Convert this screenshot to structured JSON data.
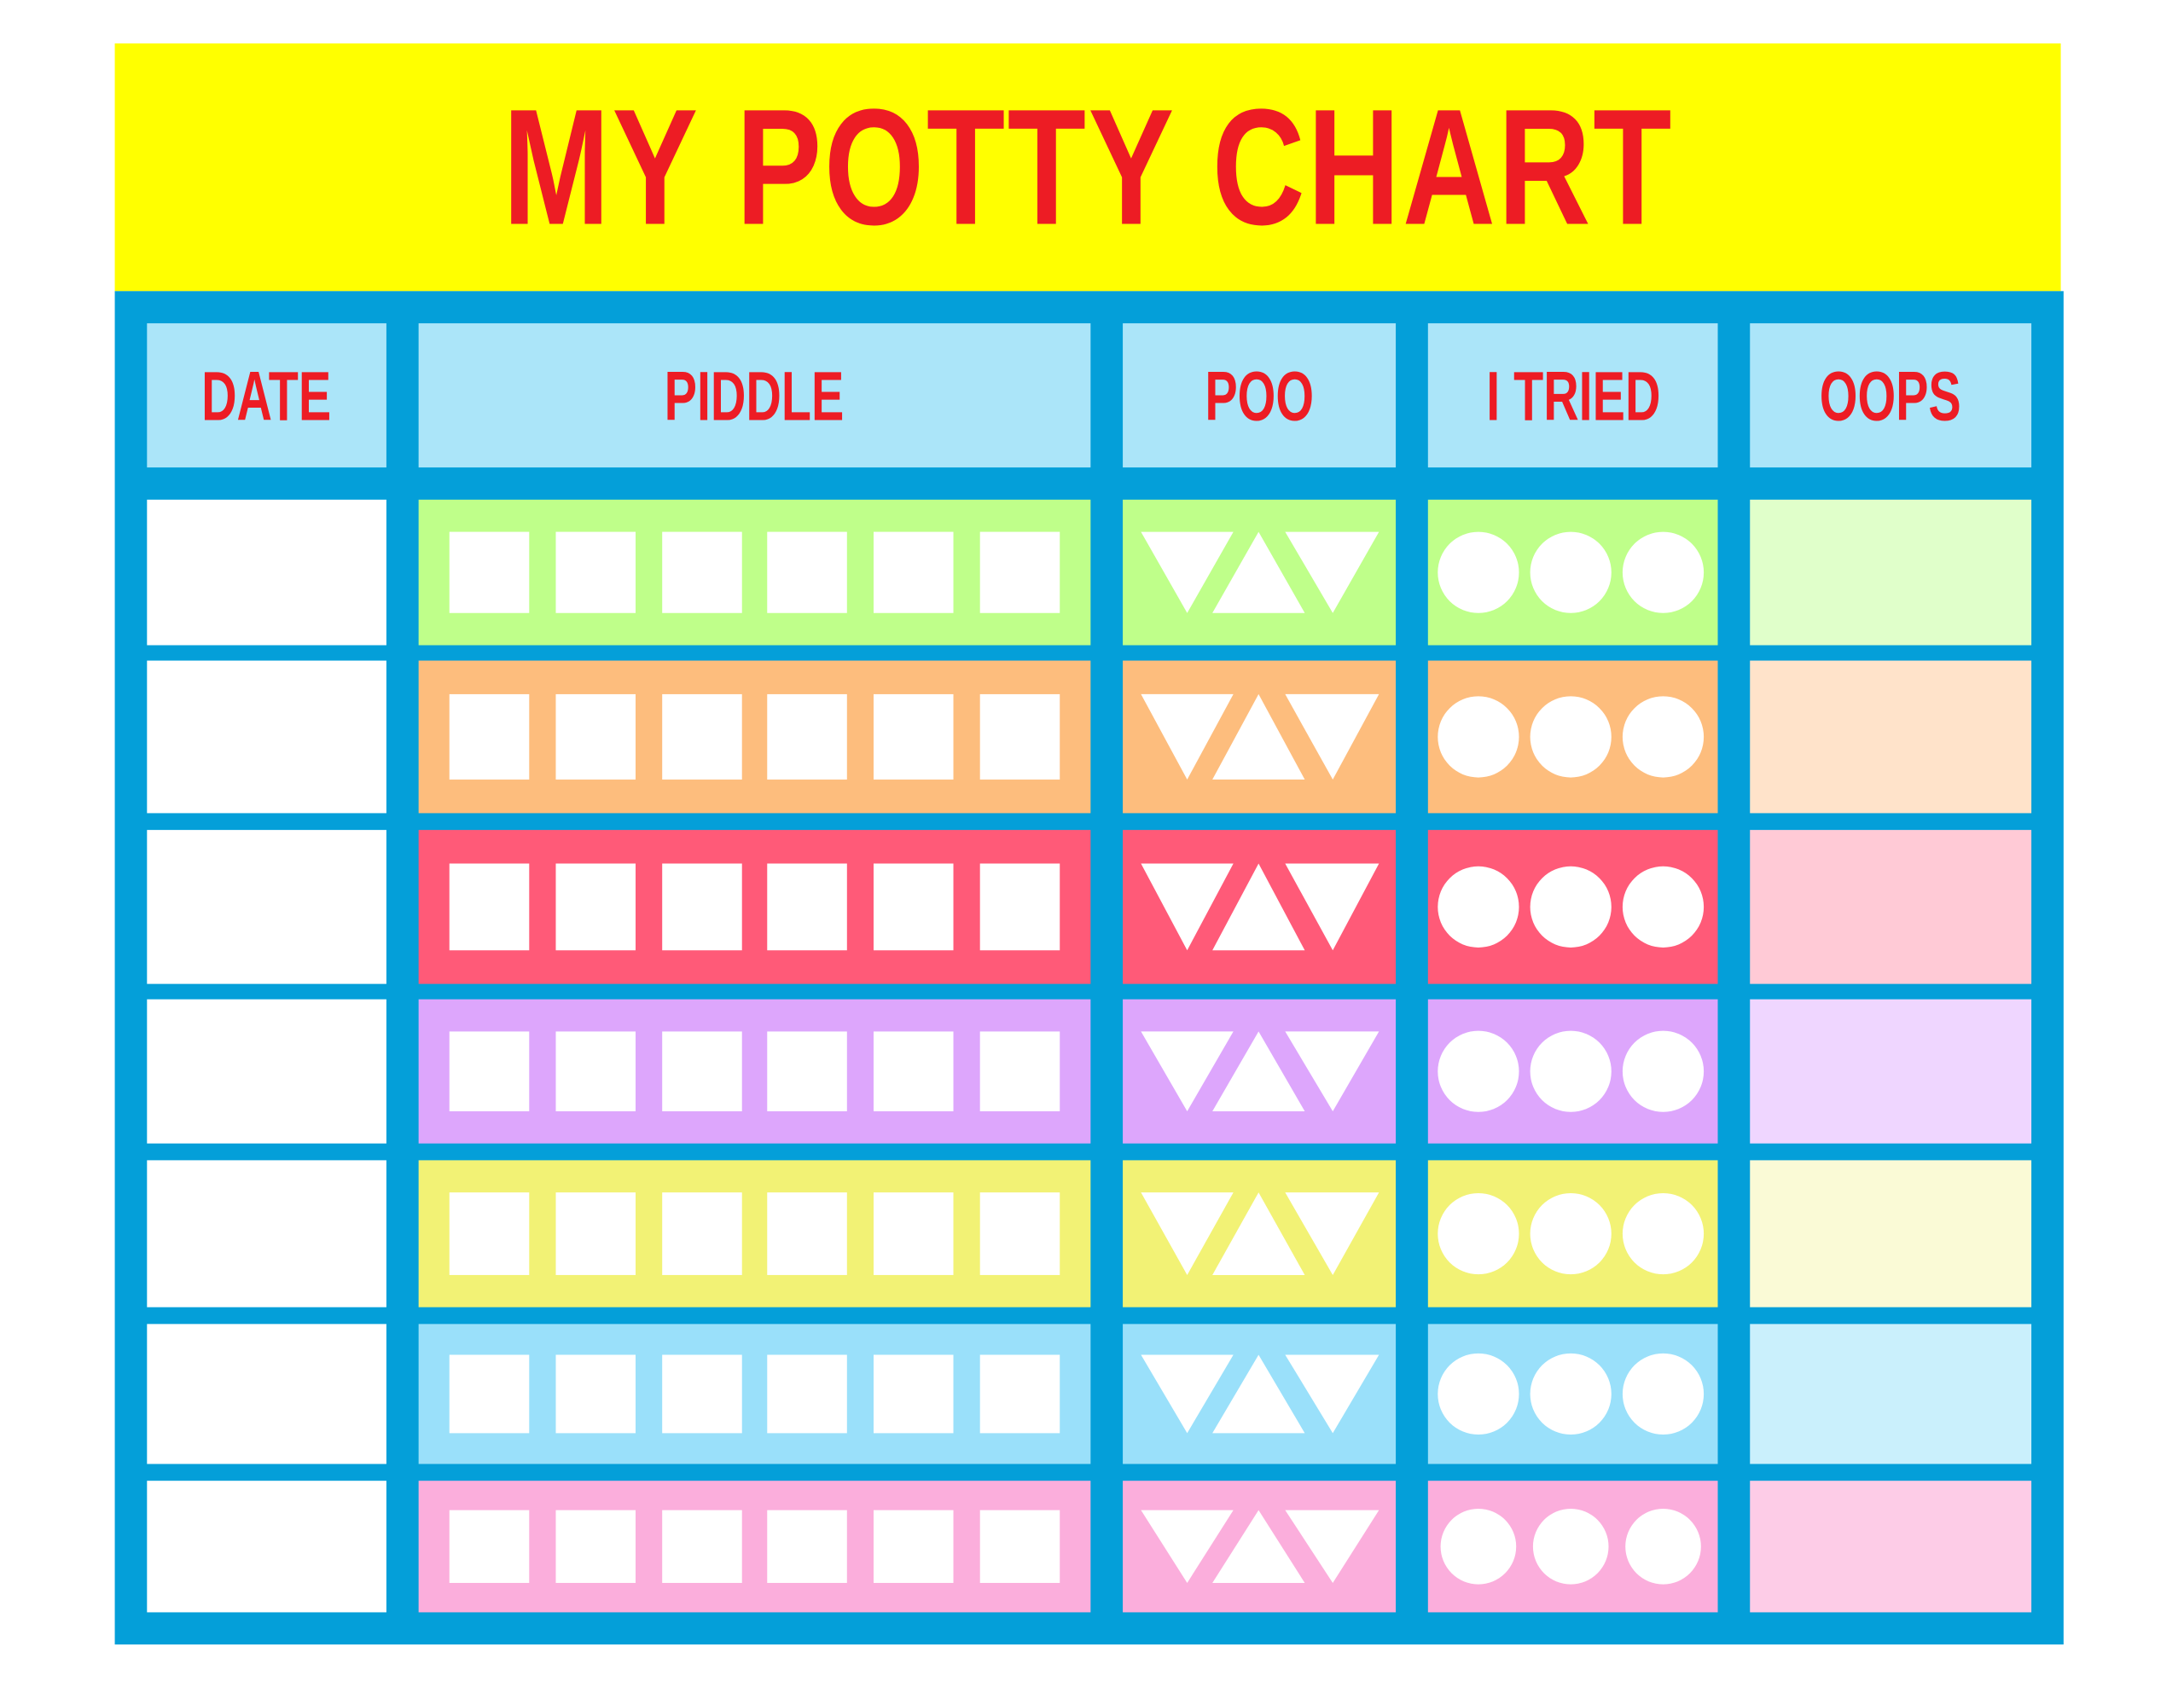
{
  "title": "MY POTTY CHART",
  "columns": [
    "DATE",
    "PIDDLE",
    "POO",
    "I TRIED",
    "OOPS"
  ],
  "colors": {
    "banner": "#FFFF00",
    "frame": "#049FD9",
    "header": "#ABE5F9",
    "header_text": "#ED1C24"
  },
  "rows": [
    {
      "color": "#BFFF8A",
      "oops_color": "#E0FFCA"
    },
    {
      "color": "#FDBD7D",
      "oops_color": "#FFE3CA"
    },
    {
      "color": "#FF5A78",
      "oops_color": "#FFCAD6"
    },
    {
      "color": "#DDA6FC",
      "oops_color": "#EFD6FF"
    },
    {
      "color": "#F2F275",
      "oops_color": "#FAFAD6"
    },
    {
      "color": "#9AE0FA",
      "oops_color": "#CAF0FC"
    },
    {
      "color": "#FBAEDC",
      "oops_color": "#FDCCE7"
    }
  ],
  "piddle_boxes_per_row": 6,
  "poo_triangles_per_row": 3,
  "tried_circles_per_row": 3
}
